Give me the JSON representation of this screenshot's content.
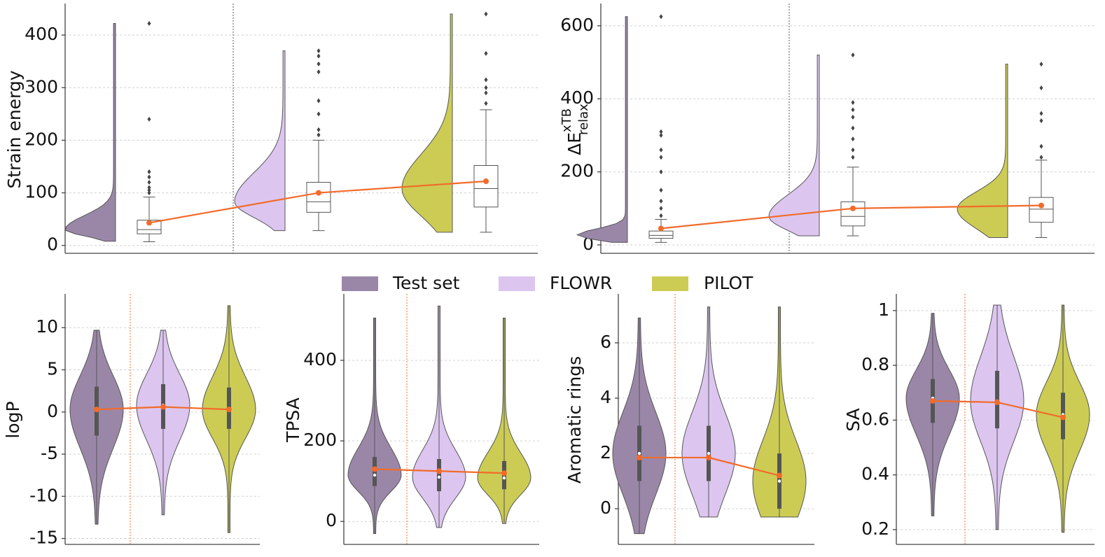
{
  "legend": {
    "names": [
      "Test set",
      "FLOWR",
      "PILOT"
    ],
    "colors": [
      "#9a87a8",
      "#dcc6f0",
      "#cccc55"
    ]
  },
  "mean_color": "#f26b2a",
  "chart_data": [
    {
      "type": "raincloud",
      "y_label": "Strain energy",
      "ylim": [
        -15,
        460
      ],
      "yticks": [
        0,
        100,
        200,
        300,
        400
      ],
      "grid": true,
      "groups": [
        {
          "min": 8,
          "whisker_low": 7,
          "q1": 22,
          "median": 30,
          "q3": 48,
          "whisker_high": 92,
          "max": 422,
          "mean": 43,
          "outliers": [
            100,
            105,
            110,
            120,
            130,
            140,
            240,
            422
          ]
        },
        {
          "min": 28,
          "whisker_low": 28,
          "q1": 63,
          "median": 83,
          "q3": 120,
          "whisker_high": 200,
          "max": 370,
          "mean": 100,
          "outliers": [
            210,
            220,
            250,
            275,
            330,
            345,
            360,
            370
          ]
        },
        {
          "min": 25,
          "whisker_low": 25,
          "q1": 73,
          "median": 108,
          "q3": 152,
          "whisker_high": 258,
          "max": 440,
          "mean": 122,
          "outliers": [
            270,
            290,
            300,
            315,
            365,
            440
          ]
        }
      ]
    },
    {
      "type": "raincloud",
      "y_label": "ΔE",
      "y_label_sup": "xTB",
      "y_label_sub": "relax",
      "ylim": [
        -23,
        661
      ],
      "yticks": [
        0,
        200,
        400,
        600
      ],
      "grid": true,
      "groups": [
        {
          "min": 7,
          "whisker_low": 7,
          "q1": 18,
          "median": 26,
          "q3": 38,
          "whisker_high": 70,
          "max": 625,
          "mean": 45,
          "outliers": [
            80,
            100,
            120,
            150,
            200,
            240,
            260,
            300,
            310,
            625
          ]
        },
        {
          "min": 25,
          "whisker_low": 25,
          "q1": 52,
          "median": 78,
          "q3": 118,
          "whisker_high": 213,
          "max": 520,
          "mean": 100,
          "outliers": [
            240,
            260,
            290,
            320,
            350,
            370,
            390,
            520
          ]
        },
        {
          "min": 20,
          "whisker_low": 20,
          "q1": 62,
          "median": 98,
          "q3": 130,
          "whisker_high": 232,
          "max": 495,
          "mean": 108,
          "outliers": [
            240,
            270,
            340,
            360,
            430,
            495
          ]
        }
      ]
    },
    {
      "type": "violin",
      "y_label": "logP",
      "ylim": [
        -15.7,
        14
      ],
      "yticks": [
        -15,
        -10,
        -5,
        0,
        5,
        10
      ],
      "grid": true,
      "groups": [
        {
          "min": -13.3,
          "q1": -2.8,
          "median": 0.3,
          "q3": 3,
          "max": 9.7,
          "mean": 0.3
        },
        {
          "min": -12.2,
          "q1": -2,
          "median": 0.8,
          "q3": 3.3,
          "max": 9.7,
          "mean": 0.6
        },
        {
          "min": -14.3,
          "q1": -2,
          "median": 0.3,
          "q3": 2.9,
          "max": 12.6,
          "mean": 0.3
        }
      ]
    },
    {
      "type": "violin",
      "y_label": "TPSA",
      "ylim": [
        -57,
        565
      ],
      "yticks": [
        0,
        200,
        400
      ],
      "grid": true,
      "groups": [
        {
          "min": -30,
          "q1": 88,
          "median": 115,
          "q3": 160,
          "max": 505,
          "mean": 130
        },
        {
          "min": -15,
          "q1": 75,
          "median": 110,
          "q3": 155,
          "max": 535,
          "mean": 125
        },
        {
          "min": -5,
          "q1": 80,
          "median": 108,
          "q3": 150,
          "max": 505,
          "mean": 120
        }
      ]
    },
    {
      "type": "violin",
      "y_label": "Aromatic rings",
      "ylim": [
        -1.29,
        7.77
      ],
      "yticks": [
        0,
        2,
        4,
        6
      ],
      "grid": true,
      "groups": [
        {
          "min": -0.9,
          "q1": 1,
          "median": 2,
          "q3": 3,
          "max": 6.9,
          "mean": 1.85
        },
        {
          "min": -0.3,
          "q1": 1,
          "median": 2,
          "q3": 3,
          "max": 7.3,
          "mean": 1.85
        },
        {
          "min": -0.3,
          "q1": 0,
          "median": 1,
          "q3": 2,
          "max": 7.3,
          "mean": 1.2
        }
      ]
    },
    {
      "type": "violin",
      "y_label": "SA",
      "ylim": [
        0.146,
        1.061
      ],
      "yticks": [
        0.2,
        0.4,
        0.6,
        0.8,
        1.0
      ],
      "grid": true,
      "groups": [
        {
          "min": 0.25,
          "q1": 0.59,
          "median": 0.68,
          "q3": 0.75,
          "max": 0.99,
          "mean": 0.67
        },
        {
          "min": 0.2,
          "q1": 0.57,
          "median": 0.67,
          "q3": 0.78,
          "max": 1.02,
          "mean": 0.665
        },
        {
          "min": 0.19,
          "q1": 0.53,
          "median": 0.62,
          "q3": 0.7,
          "max": 1.02,
          "mean": 0.61
        }
      ]
    }
  ]
}
